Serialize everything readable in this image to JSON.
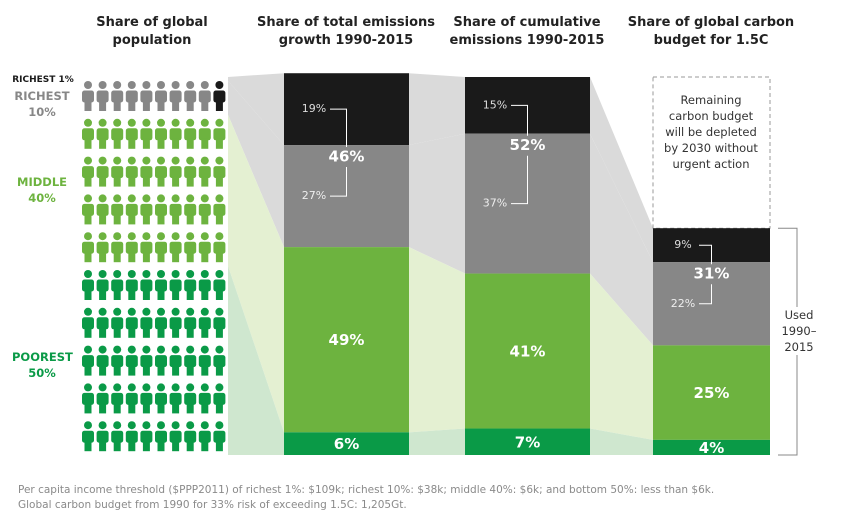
{
  "chart_data": {
    "type": "stacked-bar",
    "population_title": "Share of global population",
    "categories": [
      "Share of total emissions growth 1990-2015",
      "Share of cumulative emissions 1990-2015",
      "Share of global carbon budget for 1.5C"
    ],
    "ylim": [
      0,
      100
    ],
    "population": [
      1,
      9,
      40,
      50
    ],
    "series": [
      {
        "name": "RICHEST 1%",
        "color": "#1a1a1a",
        "label_color": "#1a1a1a",
        "band_color": "#dadada",
        "values": [
          19,
          15,
          9
        ],
        "value_labels": [
          "19%",
          "15%",
          "9%"
        ]
      },
      {
        "name": "RICHEST 10%",
        "color": "#878787",
        "label_color": "#878787",
        "band_color": "#dadada",
        "values": [
          27,
          37,
          22
        ],
        "value_labels": [
          "27%",
          "37%",
          "22%"
        ]
      },
      {
        "name": "MIDDLE 40%",
        "color": "#6db33f",
        "label_color": "#6db33f",
        "band_color": "#e4f0d2",
        "values": [
          49,
          41,
          25
        ],
        "value_labels": [
          "49%",
          "41%",
          "25%"
        ]
      },
      {
        "name": "POOREST 50%",
        "color": "#0a9a47",
        "label_color": "#0a9a47",
        "band_color": "#cfe7cf",
        "values": [
          6,
          7,
          4
        ],
        "value_labels": [
          "6%",
          "7%",
          "4%"
        ]
      }
    ],
    "combined": {
      "values": [
        46,
        52,
        31
      ],
      "value_labels": [
        "46%",
        "52%",
        "31%"
      ]
    },
    "annotation": "Remaining carbon budget will be depleted by 2030 without urgent action",
    "bracket_label": "Used 1990–2015",
    "notes": [
      "Per capita income threshold ($PPP2011) of richest 1%: $109k; richest 10%: $38k; middle 40%: $6k; and bottom 50%: less than $6k.",
      "Global carbon budget from 1990 for 33% risk of exceeding 1.5C: 1,205Gt."
    ]
  }
}
